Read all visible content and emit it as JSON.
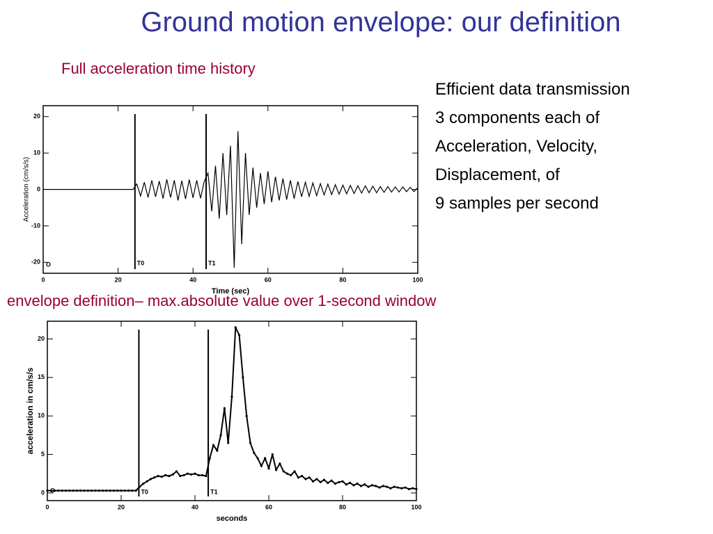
{
  "slide": {
    "title": "Ground motion envelope: our definition",
    "subtitle": "Full acceleration time history",
    "caption": "envelope definition– max.absolute value over 1-second window",
    "lines": [
      "Efficient data transmission",
      "3 components each of",
      "Acceleration, Velocity,",
      "Displacement, of",
      "9 samples per second"
    ]
  },
  "chart_data": [
    {
      "type": "line",
      "x_label": "Time (sec)",
      "y_label": "Acceleration (cm/s/s)",
      "color": "#000000",
      "xlim": [
        0,
        100
      ],
      "xticks": [
        0,
        20,
        40,
        60,
        80,
        100
      ],
      "ylim": [
        -23,
        23
      ],
      "yticks": [
        -20,
        -10,
        0,
        10,
        20
      ],
      "markers": [
        {
          "x": 24.5,
          "label": "T0"
        },
        {
          "x": 43.5,
          "label": "T1"
        }
      ],
      "origin_label": "O",
      "x": [
        0,
        1,
        2,
        3,
        4,
        5,
        6,
        7,
        8,
        9,
        10,
        11,
        12,
        13,
        14,
        15,
        16,
        17,
        18,
        19,
        20,
        21,
        22,
        23,
        24,
        25,
        26,
        27,
        28,
        29,
        30,
        31,
        32,
        33,
        34,
        35,
        36,
        37,
        38,
        39,
        40,
        41,
        42,
        43,
        44,
        45,
        46,
        47,
        48,
        49,
        50,
        51,
        52,
        53,
        54,
        55,
        56,
        57,
        58,
        59,
        60,
        61,
        62,
        63,
        64,
        65,
        66,
        67,
        68,
        69,
        70,
        71,
        72,
        73,
        74,
        75,
        76,
        77,
        78,
        79,
        80,
        81,
        82,
        83,
        84,
        85,
        86,
        87,
        88,
        89,
        90,
        91,
        92,
        93,
        94,
        95,
        96,
        97,
        98,
        99,
        100
      ],
      "values": [
        0,
        0,
        0,
        0,
        0,
        0,
        0,
        0,
        0,
        0,
        0,
        0,
        0,
        0,
        0,
        0,
        0,
        0,
        0,
        0,
        0,
        0,
        0,
        0,
        0,
        1.5,
        -1.8,
        2,
        -2.2,
        2.5,
        -2,
        2.3,
        -2.5,
        2.8,
        -2.2,
        2.5,
        -3,
        2.4,
        -2.6,
        2.7,
        -2.3,
        2.5,
        -2.4,
        2.2,
        4.5,
        -6,
        6.5,
        -8,
        10,
        -7,
        12,
        -21.5,
        16,
        -15,
        10,
        -7,
        6,
        -5,
        4.5,
        -4,
        5,
        -3.5,
        3.5,
        -3,
        3,
        -2.8,
        2.5,
        -2.5,
        2.2,
        -2,
        2,
        -1.9,
        1.8,
        -1.7,
        1.6,
        -1.5,
        1.5,
        -1.4,
        1.3,
        -1.3,
        1.2,
        -1.2,
        1.1,
        -1.1,
        1,
        -1,
        1,
        -0.9,
        0.9,
        -0.9,
        0.8,
        -0.8,
        0.8,
        -0.7,
        0.7,
        -0.7,
        0.7,
        -0.6,
        0.6,
        -0.6,
        0.5
      ]
    },
    {
      "type": "line",
      "x_label": "seconds",
      "y_label": "acceleration in cm/s/s",
      "color": "#000000",
      "point_markers": true,
      "xlim": [
        0,
        100
      ],
      "xticks": [
        0,
        20,
        40,
        60,
        80,
        100
      ],
      "ylim": [
        -1,
        22.3
      ],
      "yticks": [
        0,
        5,
        10,
        15,
        20
      ],
      "markers": [
        {
          "x": 24.8,
          "label": "T0"
        },
        {
          "x": 43.6,
          "label": "T1"
        }
      ],
      "origin_label": "O",
      "x": [
        0,
        1,
        2,
        3,
        4,
        5,
        6,
        7,
        8,
        9,
        10,
        11,
        12,
        13,
        14,
        15,
        16,
        17,
        18,
        19,
        20,
        21,
        22,
        23,
        24,
        25,
        26,
        27,
        28,
        29,
        30,
        31,
        32,
        33,
        34,
        35,
        36,
        37,
        38,
        39,
        40,
        41,
        42,
        43,
        44,
        45,
        46,
        47,
        48,
        49,
        50,
        51,
        52,
        53,
        54,
        55,
        56,
        57,
        58,
        59,
        60,
        61,
        62,
        63,
        64,
        65,
        66,
        67,
        68,
        69,
        70,
        71,
        72,
        73,
        74,
        75,
        76,
        77,
        78,
        79,
        80,
        81,
        82,
        83,
        84,
        85,
        86,
        87,
        88,
        89,
        90,
        91,
        92,
        93,
        94,
        95,
        96,
        97,
        98,
        99,
        100
      ],
      "values": [
        0.3,
        0.3,
        0.3,
        0.3,
        0.3,
        0.3,
        0.3,
        0.3,
        0.3,
        0.3,
        0.3,
        0.3,
        0.3,
        0.3,
        0.3,
        0.3,
        0.3,
        0.3,
        0.3,
        0.3,
        0.3,
        0.3,
        0.3,
        0.3,
        0.3,
        0.8,
        1.2,
        1.5,
        1.8,
        2.0,
        2.2,
        2.1,
        2.3,
        2.2,
        2.4,
        2.8,
        2.2,
        2.3,
        2.5,
        2.4,
        2.5,
        2.3,
        2.3,
        2.2,
        4.5,
        6.2,
        5.5,
        7.5,
        11,
        6.5,
        12.5,
        21.5,
        20.5,
        15,
        10,
        6.5,
        5.2,
        4.5,
        3.5,
        4.5,
        3.2,
        5,
        3.0,
        3.8,
        2.8,
        2.5,
        2.3,
        2.8,
        2.0,
        2.2,
        1.8,
        2.0,
        1.5,
        1.8,
        1.4,
        1.7,
        1.3,
        1.6,
        1.2,
        1.4,
        1.5,
        1.1,
        1.3,
        1.0,
        1.2,
        0.9,
        1.1,
        0.8,
        1.0,
        0.9,
        0.7,
        0.9,
        0.8,
        0.6,
        0.8,
        0.7,
        0.6,
        0.7,
        0.5,
        0.6,
        0.5
      ]
    }
  ]
}
